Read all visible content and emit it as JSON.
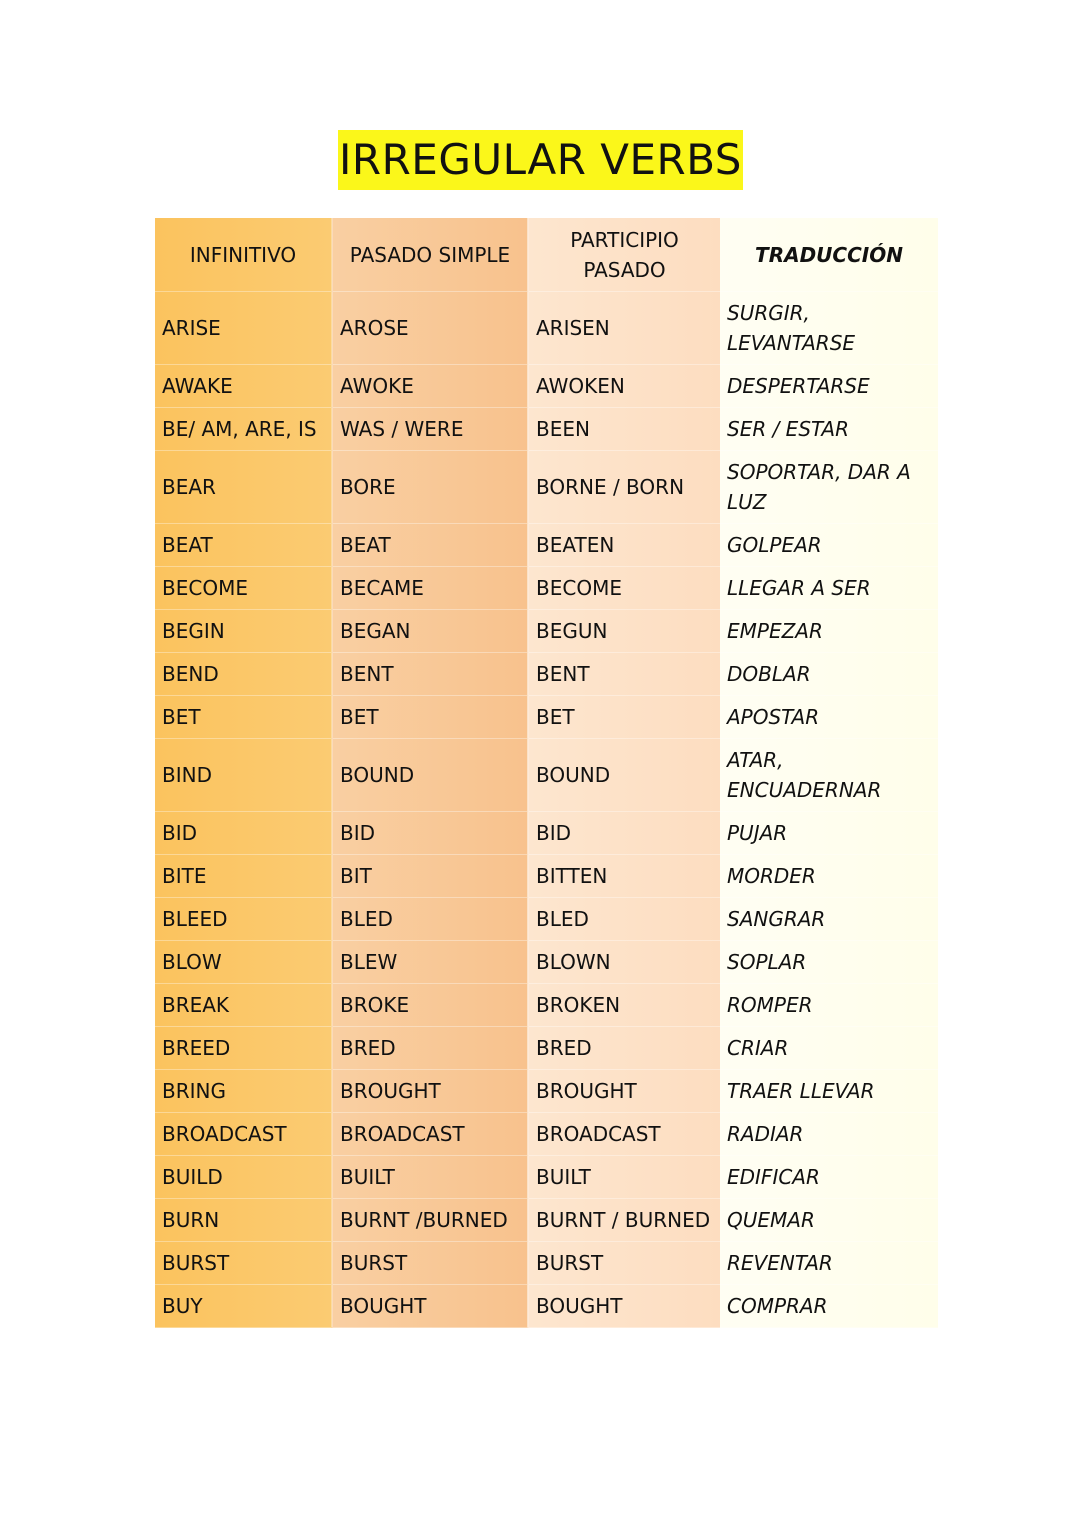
{
  "title": "IRREGULAR VERBS",
  "headers": [
    "INFINITIVO",
    "PASADO SIMPLE",
    "PARTICIPIO PASADO",
    "TRADUCCIÓN"
  ],
  "rows": [
    [
      "ARISE",
      "AROSE",
      "ARISEN",
      "SURGIR, LEVANTARSE"
    ],
    [
      "AWAKE",
      "AWOKE",
      "AWOKEN",
      "DESPERTARSE"
    ],
    [
      "BE/ AM, ARE, IS",
      "WAS / WERE",
      "BEEN",
      "SER / ESTAR"
    ],
    [
      "BEAR",
      "BORE",
      "BORNE / BORN",
      "SOPORTAR, DAR A LUZ"
    ],
    [
      "BEAT",
      "BEAT",
      "BEATEN",
      "GOLPEAR"
    ],
    [
      "BECOME",
      "BECAME",
      "BECOME",
      "LLEGAR A SER"
    ],
    [
      "BEGIN",
      "BEGAN",
      "BEGUN",
      "EMPEZAR"
    ],
    [
      "BEND",
      "BENT",
      "BENT",
      "DOBLAR"
    ],
    [
      "BET",
      "BET",
      "BET",
      "APOSTAR"
    ],
    [
      "BIND",
      "BOUND",
      "BOUND",
      "ATAR, ENCUADERNAR"
    ],
    [
      "BID",
      "BID",
      "BID",
      "PUJAR"
    ],
    [
      "BITE",
      "BIT",
      "BITTEN",
      "MORDER"
    ],
    [
      "BLEED",
      "BLED",
      "BLED",
      "SANGRAR"
    ],
    [
      "BLOW",
      "BLEW",
      "BLOWN",
      "SOPLAR"
    ],
    [
      "BREAK",
      "BROKE",
      "BROKEN",
      "ROMPER"
    ],
    [
      "BREED",
      "BRED",
      "BRED",
      "CRIAR"
    ],
    [
      "BRING",
      "BROUGHT",
      "BROUGHT",
      "TRAER LLEVAR"
    ],
    [
      "BROADCAST",
      "BROADCAST",
      "BROADCAST",
      "RADIAR"
    ],
    [
      "BUILD",
      "BUILT",
      "BUILT",
      "EDIFICAR"
    ],
    [
      "BURN",
      "BURNT /BURNED",
      "BURNT / BURNED",
      "QUEMAR"
    ],
    [
      "BURST",
      "BURST",
      "BURST",
      "REVENTAR"
    ],
    [
      "BUY",
      "BOUGHT",
      "BOUGHT",
      "COMPRAR"
    ]
  ]
}
